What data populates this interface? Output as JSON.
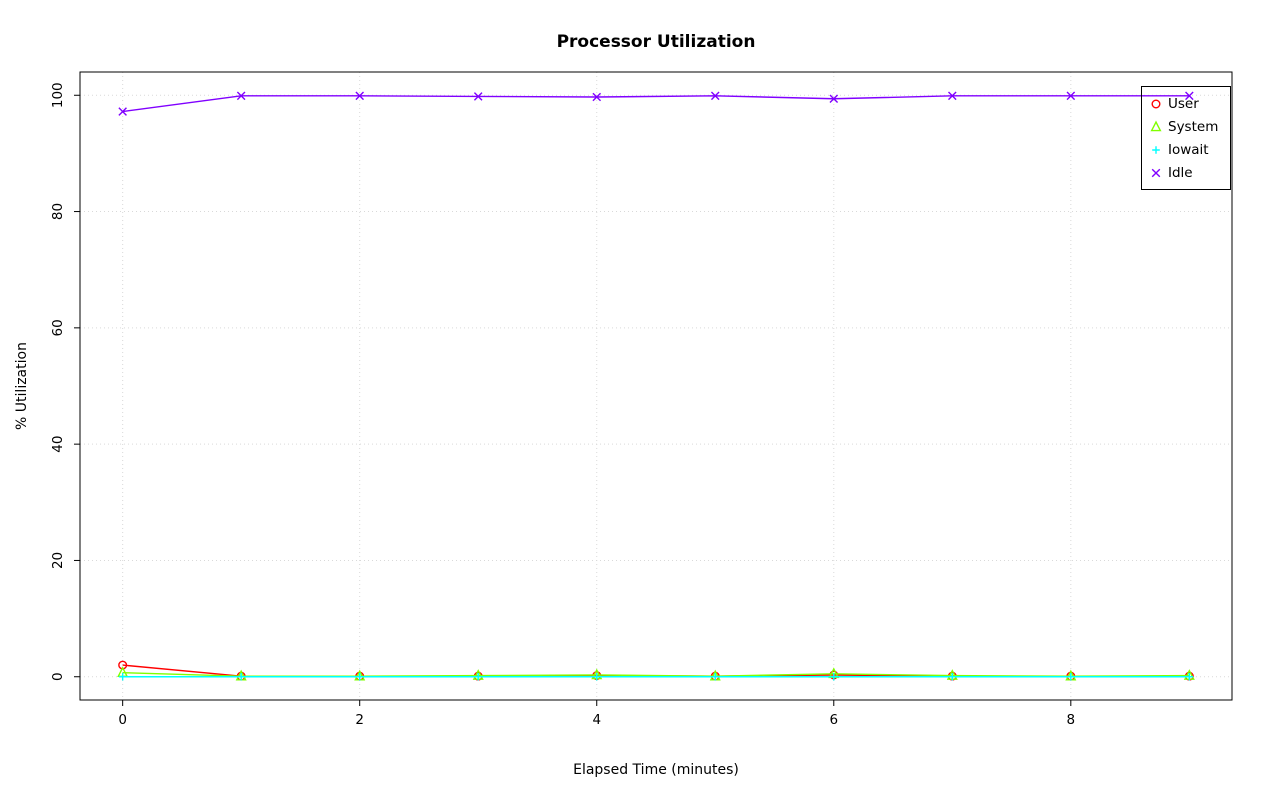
{
  "chart_data": {
    "type": "line",
    "title": "Processor Utilization",
    "xlabel": "Elapsed Time (minutes)",
    "ylabel": "% Utilization",
    "x": [
      0,
      1,
      2,
      3,
      4,
      5,
      6,
      7,
      8,
      9
    ],
    "x_ticks": [
      0,
      2,
      4,
      6,
      8
    ],
    "y_ticks": [
      0,
      20,
      40,
      60,
      80,
      100
    ],
    "xlim": [
      -0.36,
      9.36
    ],
    "ylim": [
      -4,
      104
    ],
    "grid": true,
    "grid_color": "#d9d9d9",
    "axis_color": "#000000",
    "legend_position": "top-right",
    "series": [
      {
        "id": "user",
        "name": "User",
        "color": "#FF0000",
        "marker": "circle",
        "values": [
          2.0,
          0.1,
          0.1,
          0.1,
          0.2,
          0.1,
          0.3,
          0.1,
          0.1,
          0.1
        ]
      },
      {
        "id": "system",
        "name": "System",
        "color": "#80FF00",
        "marker": "triangle",
        "values": [
          0.7,
          0.1,
          0.1,
          0.2,
          0.3,
          0.1,
          0.5,
          0.2,
          0.1,
          0.2
        ]
      },
      {
        "id": "iowait",
        "name": "Iowait",
        "color": "#00FFFF",
        "marker": "plus",
        "values": [
          0.0,
          0.0,
          0.0,
          0.0,
          0.0,
          0.0,
          0.0,
          0.0,
          0.0,
          0.0
        ]
      },
      {
        "id": "idle",
        "name": "Idle",
        "color": "#8000FF",
        "marker": "x",
        "values": [
          97.2,
          99.9,
          99.9,
          99.8,
          99.7,
          99.9,
          99.4,
          99.9,
          99.9,
          99.9
        ]
      }
    ]
  }
}
